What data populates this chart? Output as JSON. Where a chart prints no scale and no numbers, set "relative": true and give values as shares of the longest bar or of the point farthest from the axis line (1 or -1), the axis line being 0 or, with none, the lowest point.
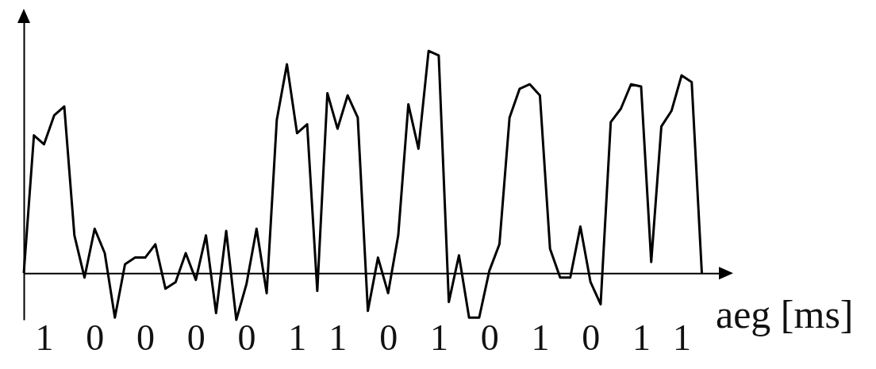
{
  "chart_data": {
    "type": "line",
    "relative": true,
    "xlabel": "aeg [ms]",
    "marker": "none",
    "line_style": "solid",
    "grid": false,
    "categories": [
      null,
      null,
      "1",
      null,
      null,
      null,
      null,
      "0",
      null,
      null,
      null,
      null,
      "0",
      null,
      null,
      null,
      null,
      "0",
      null,
      null,
      null,
      null,
      "0",
      null,
      null,
      null,
      null,
      "1",
      null,
      null,
      null,
      "1",
      null,
      null,
      null,
      null,
      "0",
      null,
      null,
      null,
      null,
      "1",
      null,
      null,
      null,
      null,
      "0",
      null,
      null,
      null,
      null,
      "1",
      null,
      null,
      null,
      null,
      "0",
      null,
      null,
      null,
      null,
      "1",
      null,
      null,
      null,
      "1",
      null,
      null
    ],
    "series": [
      {
        "color": "#000000",
        "values": [
          0,
          0.62,
          0.58,
          0.71,
          0.75,
          0.17,
          -0.02,
          0.2,
          0.09,
          -0.2,
          0.04,
          0.07,
          0.07,
          0.13,
          -0.07,
          -0.04,
          0.09,
          -0.03,
          0.17,
          -0.18,
          0.19,
          -0.21,
          -0.05,
          0.2,
          -0.09,
          0.69,
          0.94,
          0.63,
          0.67,
          -0.08,
          0.81,
          0.65,
          0.8,
          0.7,
          -0.17,
          0.07,
          -0.09,
          0.17,
          0.76,
          0.56,
          1,
          0.98,
          -0.13,
          0.08,
          -0.2,
          -0.2,
          0.01,
          0.13,
          0.7,
          0.83,
          0.85,
          0.8,
          0.11,
          -0.02,
          -0.02,
          0.21,
          -0.04,
          -0.14,
          0.68,
          0.74,
          0.85,
          0.84,
          0.05,
          0.66,
          0.73,
          0.89,
          0.86,
          0
        ]
      }
    ]
  }
}
